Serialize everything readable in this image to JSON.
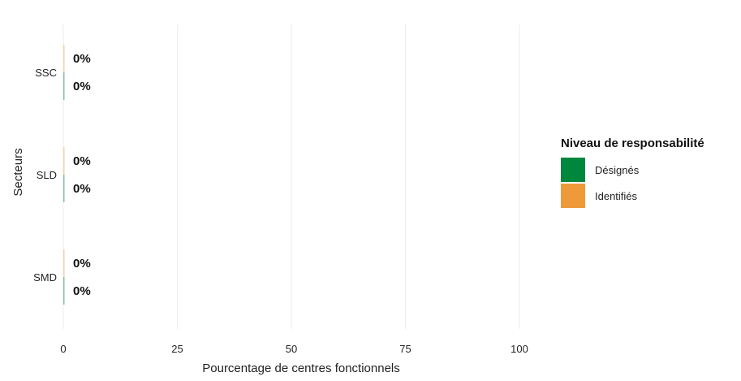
{
  "chart_data": {
    "type": "bar",
    "orientation": "horizontal",
    "title": "",
    "xlabel": "Pourcentage de centres fonctionnels",
    "ylabel": "Secteurs",
    "xlim": [
      0,
      100
    ],
    "x_ticks": [
      0,
      25,
      50,
      75,
      100
    ],
    "grid": true,
    "categories": [
      "SSC",
      "SLD",
      "SMD"
    ],
    "series": [
      {
        "name": "Identifiés",
        "values": [
          0,
          0,
          0
        ],
        "labels": [
          "0%",
          "0%",
          "0%"
        ]
      },
      {
        "name": "Désignés",
        "values": [
          0,
          0,
          0
        ],
        "labels": [
          "0%",
          "0%",
          "0%"
        ]
      }
    ],
    "legend": {
      "title": "Niveau de responsabilité",
      "position": "right",
      "items": [
        {
          "label": "Désignés",
          "color": "#00873E"
        },
        {
          "label": "Identifiés",
          "color": "#EE9A3A"
        }
      ]
    }
  }
}
